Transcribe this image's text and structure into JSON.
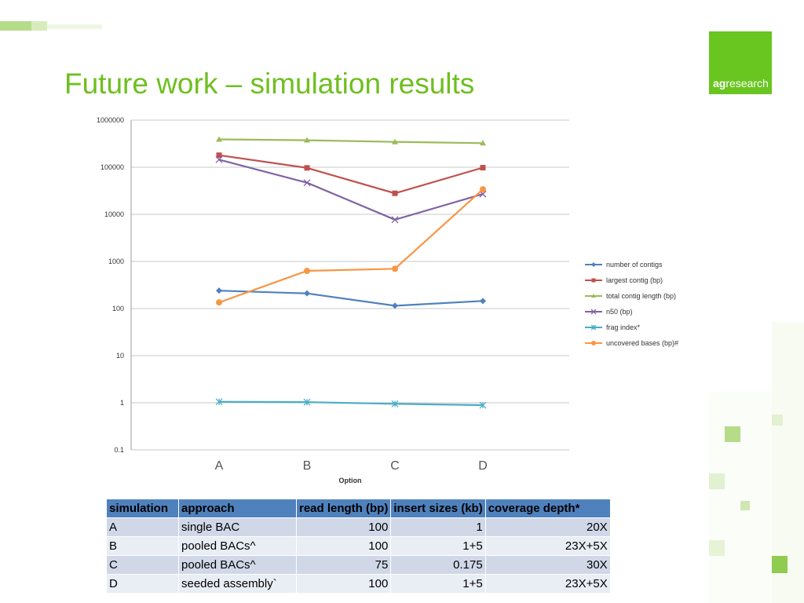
{
  "slide": {
    "title": "Future work – simulation results",
    "logo_bold": "ag",
    "logo_rest": "research"
  },
  "chart_data": {
    "type": "line",
    "yscale": "log",
    "ylim": [
      0.1,
      1000000
    ],
    "yticks": [
      "1000000",
      "100000",
      "10000",
      "1000",
      "100",
      "10",
      "1",
      "0.1"
    ],
    "categories": [
      "A",
      "B",
      "C",
      "D"
    ],
    "xlabel": "Option",
    "ylabel": "",
    "grid": true,
    "legend_position": "right",
    "series": [
      {
        "name": "number of contigs",
        "values": [
          240,
          210,
          115,
          145
        ],
        "color": "#4f81bd",
        "marker": "diamond"
      },
      {
        "name": "largest contig (bp)",
        "values": [
          180000,
          97000,
          28000,
          98000
        ],
        "color": "#c0504d",
        "marker": "square"
      },
      {
        "name": "total contig length (bp)",
        "values": [
          390000,
          375000,
          345000,
          325000
        ],
        "color": "#9bbb59",
        "marker": "triangle"
      },
      {
        "name": "n50 (bp)",
        "values": [
          145000,
          47000,
          7700,
          27000
        ],
        "color": "#8064a2",
        "marker": "x"
      },
      {
        "name": "frag index*",
        "values": [
          1.05,
          1.03,
          0.95,
          0.89
        ],
        "color": "#4bacc6",
        "marker": "star"
      },
      {
        "name": "uncovered bases (bp)#",
        "values": [
          135,
          630,
          700,
          34000
        ],
        "color": "#f79646",
        "marker": "circle"
      }
    ]
  },
  "table": {
    "headers": [
      "simulation",
      "approach",
      "read length (bp)",
      "insert sizes (kb)",
      "coverage depth*"
    ],
    "rows": [
      [
        "A",
        "single BAC",
        "100",
        "1",
        "20X"
      ],
      [
        "B",
        "pooled BACs^",
        "100",
        "1+5",
        "23X+5X"
      ],
      [
        "C",
        "pooled BACs^",
        "75",
        "0.175",
        "30X"
      ],
      [
        "D",
        "seeded assembly`",
        "100",
        "1+5",
        "23X+5X"
      ]
    ]
  }
}
